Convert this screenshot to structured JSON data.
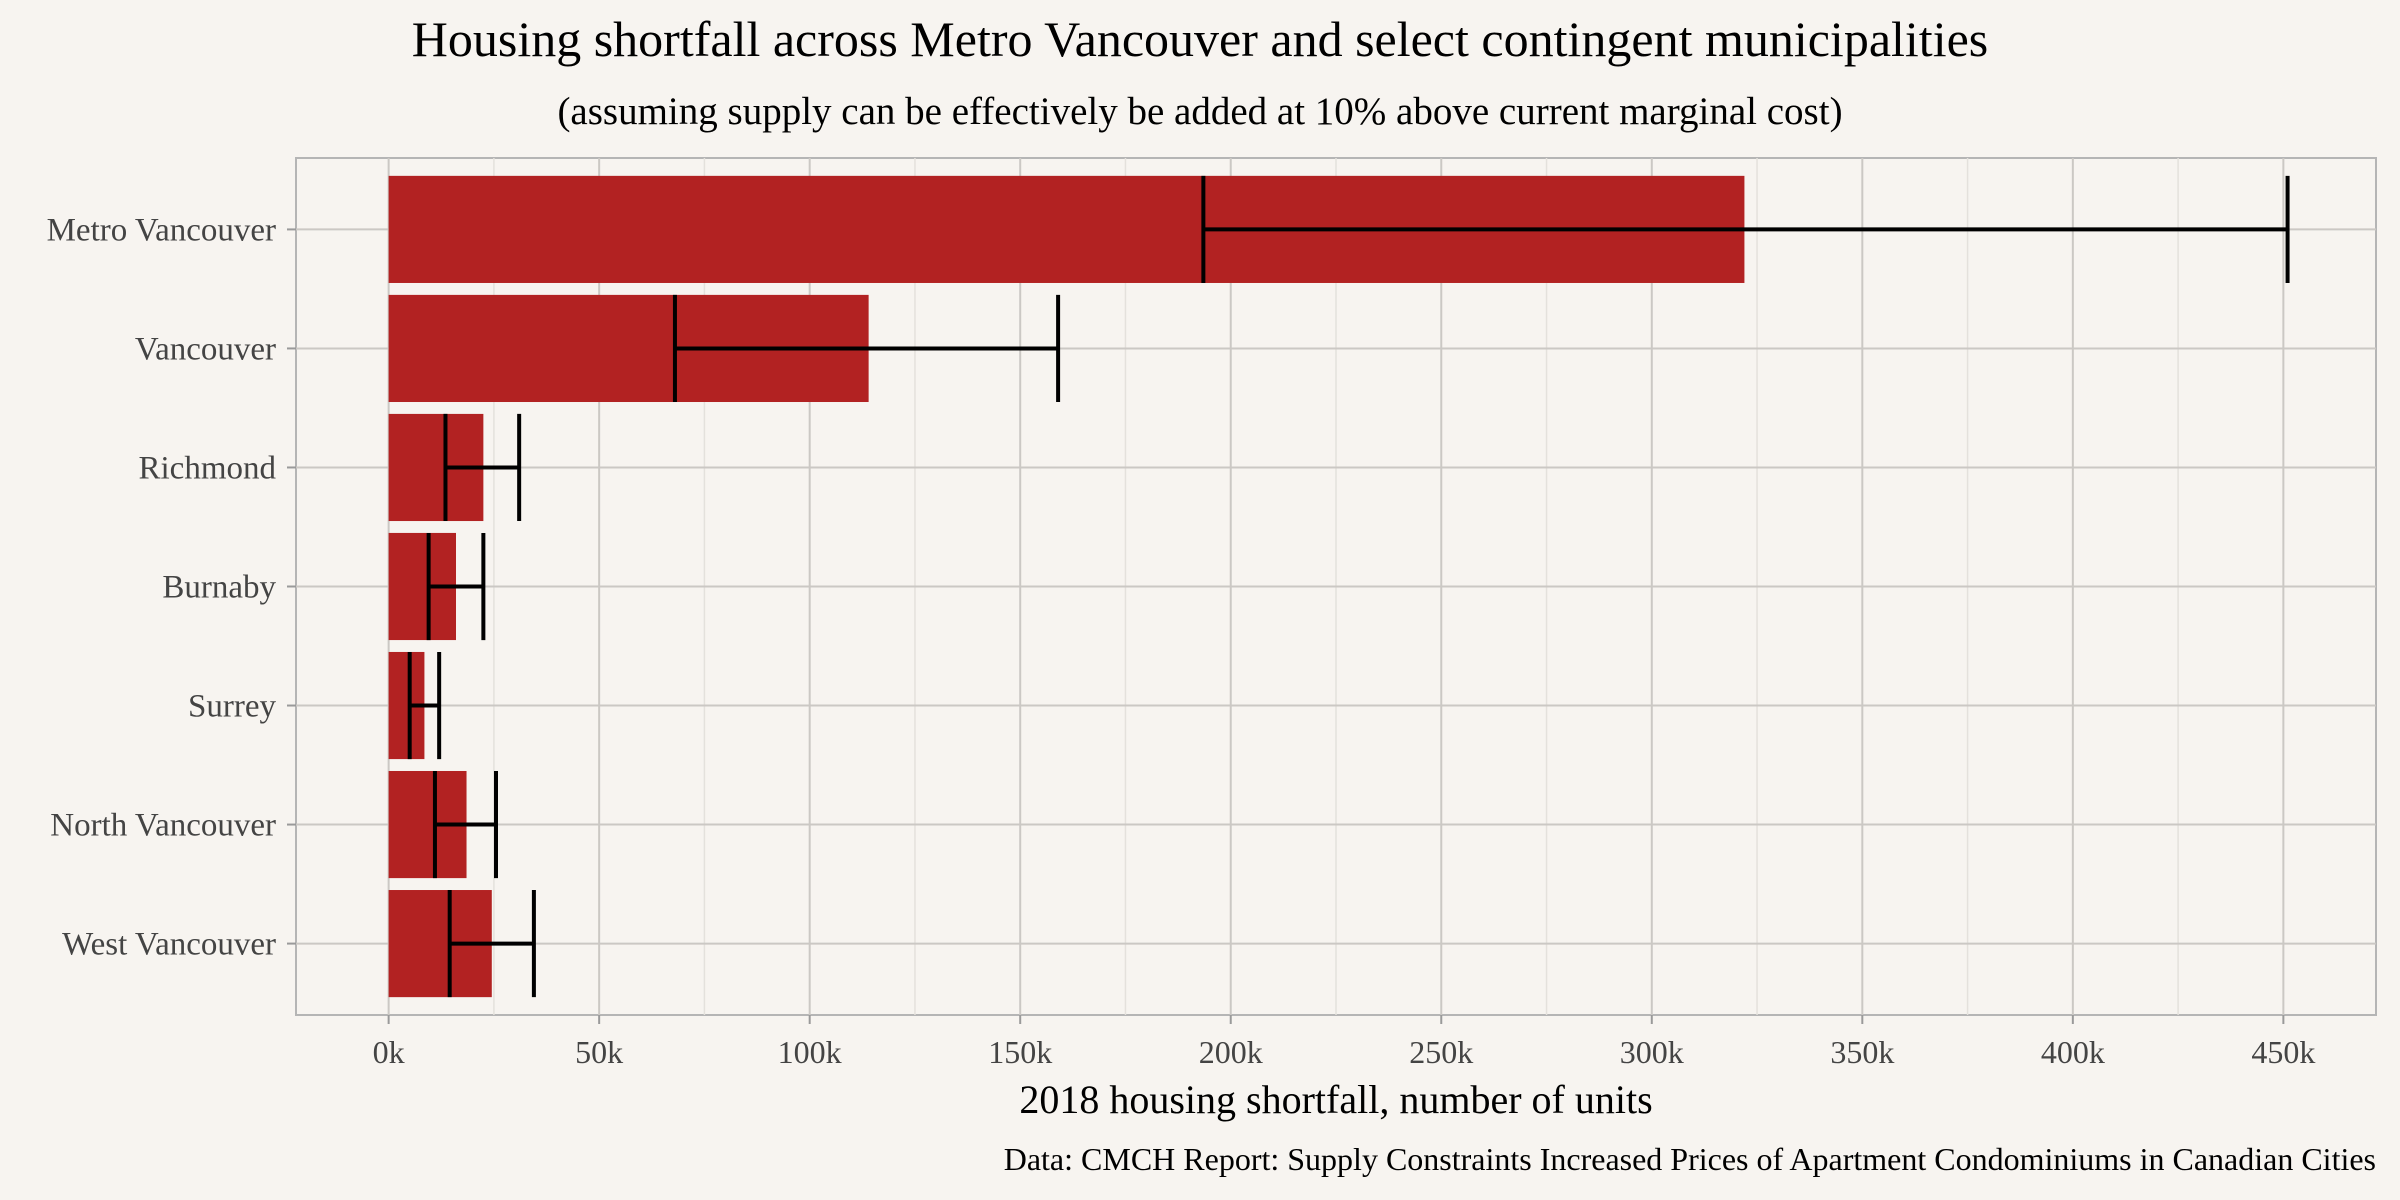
{
  "chart_data": {
    "type": "bar",
    "orientation": "horizontal",
    "title": "Housing shortfall across Metro Vancouver and select contingent municipalities",
    "subtitle": "(assuming supply can be effectively be added at 10% above current marginal cost)",
    "xlabel": "2018 housing shortfall, number of units",
    "ylabel": "",
    "caption": "Data: CMCH Report: Supply Constraints Increased Prices of Apartment Condominiums in Canadian Cities",
    "categories": [
      "Metro Vancouver",
      "Vancouver",
      "Richmond",
      "Burnaby",
      "Surrey",
      "North Vancouver",
      "West Vancouver"
    ],
    "values": [
      322000,
      114000,
      22500,
      16000,
      8500,
      18500,
      24500
    ],
    "error_low": [
      193500,
      68000,
      13500,
      9500,
      5000,
      11000,
      14500
    ],
    "error_high": [
      451000,
      159000,
      31000,
      22500,
      12000,
      25500,
      34500
    ],
    "xlim": [
      -22000,
      472000
    ],
    "xticks": [
      0,
      50000,
      100000,
      150000,
      200000,
      250000,
      300000,
      350000,
      400000,
      450000
    ],
    "xtick_labels": [
      "0k",
      "50k",
      "100k",
      "150k",
      "200k",
      "250k",
      "300k",
      "350k",
      "400k",
      "450k"
    ],
    "grid": true,
    "bar_color": "#b22222",
    "errorbar_color": "#000000",
    "background": "#f7f4f0"
  }
}
